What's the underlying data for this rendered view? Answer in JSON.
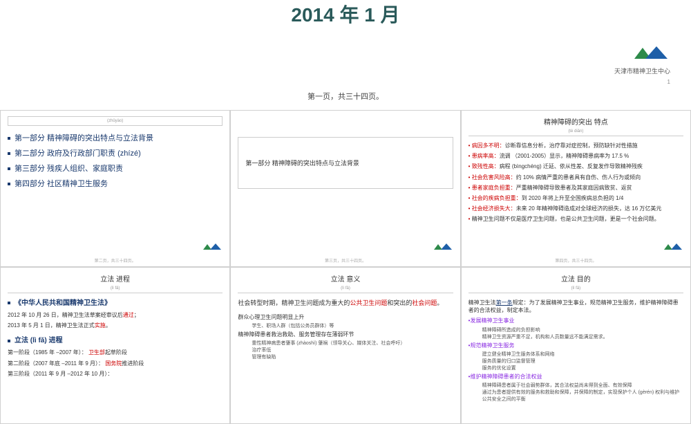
{
  "header": {
    "title": "2014 年 1 月",
    "logo_text": "天津市精神卫生中心",
    "page_num": "1",
    "page_marker": "第一页，共三十四页。",
    "logo_colors": {
      "left": "#2d8a4a",
      "right": "#1e5fa8"
    }
  },
  "slides": {
    "s1": {
      "header_label": "(zhǔyào)",
      "toc": [
        "第一部分  精神障碍的突出特点与立法背景",
        "第二部分  政府及行政部门职责 (zhízé)",
        "第三部分  残疾人组织、家庭职责",
        "第四部分  社区精神卫生服务"
      ],
      "footer": "第二页，共三十四页。"
    },
    "s2": {
      "section": "第一部分        精神障碍的突出特点与立法背景",
      "footer": "第三页，共三十四页。"
    },
    "s3": {
      "title": "精神障碍的突出      特点",
      "sub": "(tè diǎn)",
      "items": [
        {
          "label": "病因多不明：",
          "text": "诊断靠信息分析，治疗靠对症控制，预防缺针对性措施"
        },
        {
          "label": "患病率高：",
          "text": "流调 （2001-2005）显示，精神障碍患病率为 17.5 %"
        },
        {
          "label": "致残性高：",
          "text": "病程 (bìngchéng) 迁延、依从性差、反复发作导致精神残疾"
        },
        {
          "label": "社会危害风险高：",
          "text": "约 10% 病情严重的患者具有自伤、伤人行为或倾向"
        },
        {
          "label": "患者家庭负担重：",
          "text": "严重精神障碍导致患者及其家庭因病致贫、返贫"
        },
        {
          "label": "社会的疾病负担重：",
          "text": "到 2020 年将上升至全国疾病总负担的 1/4"
        },
        {
          "label": "社会经济损失大：",
          "text": "未来 20 年精神障碍造成对全球经济的损失，达 16 万亿美元"
        },
        {
          "label": "",
          "text": "精神卫生问题不仅是医疗卫生问题，也是公共卫生问题，更是一个社会问题。"
        }
      ],
      "footer": "第四页，共三十四页。"
    },
    "s4": {
      "title": "立法      进程",
      "sub": "(lì fǎ)",
      "law": "《中华人民共和国精神卫生法》",
      "line1a": "2012 年 10 月 26 日，精神卫生法草案经审议后",
      "line1b": "通过",
      "line1c": "；",
      "line2a": "2013 年 5 月 1 日，精神卫生法正式",
      "line2b": "实施",
      "line2c": "。",
      "sub2": "立法 (lì fǎ) 进程",
      "stages": [
        {
          "pre": "第一阶段（1985 年 –2007 年）：  ",
          "org": "卫生部",
          "post": "起草阶段"
        },
        {
          "pre": "第二阶段（2007 年底 –2011 年 9 月）：  ",
          "org": "国务院",
          "post": "推进阶段"
        },
        {
          "pre": "第三阶段（2011 年 9 月 –2012 年 10 月）：",
          "org": "",
          "post": ""
        }
      ]
    },
    "s5": {
      "title": "立法      意义",
      "sub": "(lì fǎ)",
      "intro_a": "     社会转型时期，精神卫生问题成为重大的",
      "intro_b": "公共卫生问题",
      "intro_c": "和突出的",
      "intro_d": "社会问题",
      "intro_e": "。",
      "p1": "群众心理卫生问题明显上升",
      "p1_sub": "学生、职场人群（包括公务员群体）等",
      "p2": "精神障碍患者救治救助、服务管理存在薄弱环节",
      "p2_sub1a": "重性精神病患者肇事 (zhàoshì) 肇祸（领导关心、媒体关注、社会呼吁）",
      "p2_sub2": "治疗率低",
      "p2_sub3": "管理有缺陷"
    },
    "s6": {
      "title": "立法      目的",
      "sub": "(lì fǎ)",
      "intro_a": "     精神卫生法",
      "intro_b": "第一条",
      "intro_c": "规定：为了发展精神卫生事业，规范精神卫生服务，维护精神障碍患者的合法权益，制定本法。",
      "g1": "发展精神卫生事业",
      "g1_sub": [
        "精神障碍所造成的负担影响",
        "精神卫生资源严重不足，机构和人员数量远不能满足需求。"
      ],
      "g2": "规范精神卫生服务",
      "g2_sub": [
        "建立健全精神卫生服务体系和网络",
        "服务质量的归口监督管理",
        "服务的优化设置"
      ],
      "g3": "维护精神障碍患者的合法权益",
      "g3_sub": [
        "精神障碍患者属于社会弱势群体，其合法权益尚未得到全面、有效保障",
        "通过为患者提供有效的服务和救助和保障，并保障的制定，实现保护个人 (gèrén) 权利与维护公共安全之间的平衡"
      ]
    }
  }
}
